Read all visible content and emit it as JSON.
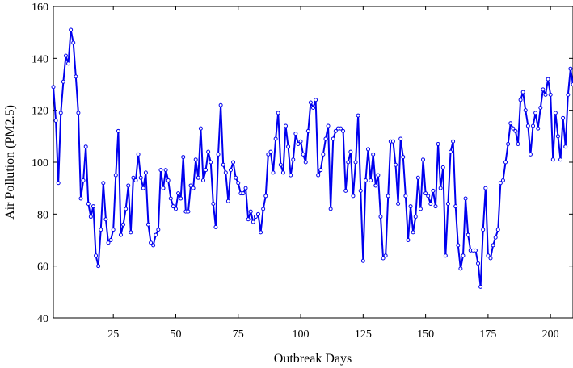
{
  "chart_data": {
    "type": "line",
    "title": "",
    "xlabel": "Outbreak Days",
    "ylabel": "Air Pollution (PM2.5)",
    "xlim": [
      1,
      209
    ],
    "ylim": [
      40,
      160
    ],
    "xticks": [
      25,
      50,
      75,
      100,
      125,
      150,
      175,
      200
    ],
    "yticks": [
      40,
      60,
      80,
      100,
      120,
      140,
      160
    ],
    "grid": false,
    "legend": "none",
    "line_color": "#0000ee",
    "series": [
      {
        "name": "",
        "x": [
          1,
          2,
          3,
          4,
          5,
          6,
          7,
          8,
          9,
          10,
          11,
          12,
          13,
          14,
          15,
          16,
          17,
          18,
          19,
          20,
          21,
          22,
          23,
          24,
          25,
          26,
          27,
          28,
          29,
          30,
          31,
          32,
          33,
          34,
          35,
          36,
          37,
          38,
          39,
          40,
          41,
          42,
          43,
          44,
          45,
          46,
          47,
          48,
          49,
          50,
          51,
          52,
          53,
          54,
          55,
          56,
          57,
          58,
          59,
          60,
          61,
          62,
          63,
          64,
          65,
          66,
          67,
          68,
          69,
          70,
          71,
          72,
          73,
          74,
          75,
          76,
          77,
          78,
          79,
          80,
          81,
          82,
          83,
          84,
          85,
          86,
          87,
          88,
          89,
          90,
          91,
          92,
          93,
          94,
          95,
          96,
          97,
          98,
          99,
          100,
          101,
          102,
          103,
          104,
          105,
          106,
          107,
          108,
          109,
          110,
          111,
          112,
          113,
          114,
          115,
          116,
          117,
          118,
          119,
          120,
          121,
          122,
          123,
          124,
          125,
          126,
          127,
          128,
          129,
          130,
          131,
          132,
          133,
          134,
          135,
          136,
          137,
          138,
          139,
          140,
          141,
          142,
          143,
          144,
          145,
          146,
          147,
          148,
          149,
          150,
          151,
          152,
          153,
          154,
          155,
          156,
          157,
          158,
          159,
          160,
          161,
          162,
          163,
          164,
          165,
          166,
          167,
          168,
          169,
          170,
          171,
          172,
          173,
          174,
          175,
          176,
          177,
          178,
          179,
          180,
          181,
          182,
          183,
          184,
          185,
          186,
          187,
          188,
          189,
          190,
          191,
          192,
          193,
          194,
          195,
          196,
          197,
          198,
          199,
          200,
          201,
          202,
          203,
          204,
          205,
          206,
          207,
          208,
          209
        ],
        "values": [
          129,
          116,
          92,
          119,
          131,
          141,
          138,
          151,
          146,
          133,
          119,
          86,
          93,
          106,
          84,
          79,
          83,
          64,
          60,
          74,
          92,
          78,
          69,
          70,
          74,
          95,
          112,
          72,
          76,
          82,
          91,
          73,
          94,
          93,
          103,
          94,
          90,
          96,
          76,
          69,
          68,
          72,
          74,
          97,
          90,
          97,
          93,
          86,
          83,
          82,
          88,
          86,
          102,
          81,
          81,
          91,
          90,
          101,
          94,
          113,
          93,
          97,
          104,
          100,
          84,
          75,
          103,
          122,
          99,
          96,
          85,
          97,
          100,
          94,
          92,
          88,
          88,
          90,
          78,
          81,
          77,
          79,
          80,
          73,
          82,
          87,
          103,
          104,
          96,
          109,
          119,
          99,
          96,
          114,
          106,
          95,
          101,
          111,
          107,
          108,
          103,
          100,
          112,
          123,
          121,
          124,
          95,
          97,
          103,
          109,
          114,
          82,
          109,
          112,
          113,
          113,
          112,
          89,
          100,
          104,
          87,
          100,
          118,
          89,
          62,
          93,
          105,
          93,
          103,
          91,
          95,
          79,
          63,
          64,
          87,
          108,
          108,
          99,
          84,
          109,
          102,
          87,
          70,
          83,
          73,
          79,
          94,
          82,
          101,
          88,
          87,
          84,
          89,
          83,
          107,
          90,
          98,
          64,
          84,
          104,
          108,
          83,
          68,
          59,
          64,
          86,
          72,
          66,
          66,
          66,
          61,
          52,
          74,
          90,
          64,
          63,
          68,
          71,
          74,
          92,
          93,
          100,
          107,
          115,
          113,
          112,
          107,
          124,
          127,
          120,
          114,
          103,
          114,
          119,
          113,
          121,
          128,
          126,
          132,
          126,
          101,
          119,
          110,
          101,
          117,
          106,
          126,
          136,
          130
        ]
      }
    ]
  }
}
